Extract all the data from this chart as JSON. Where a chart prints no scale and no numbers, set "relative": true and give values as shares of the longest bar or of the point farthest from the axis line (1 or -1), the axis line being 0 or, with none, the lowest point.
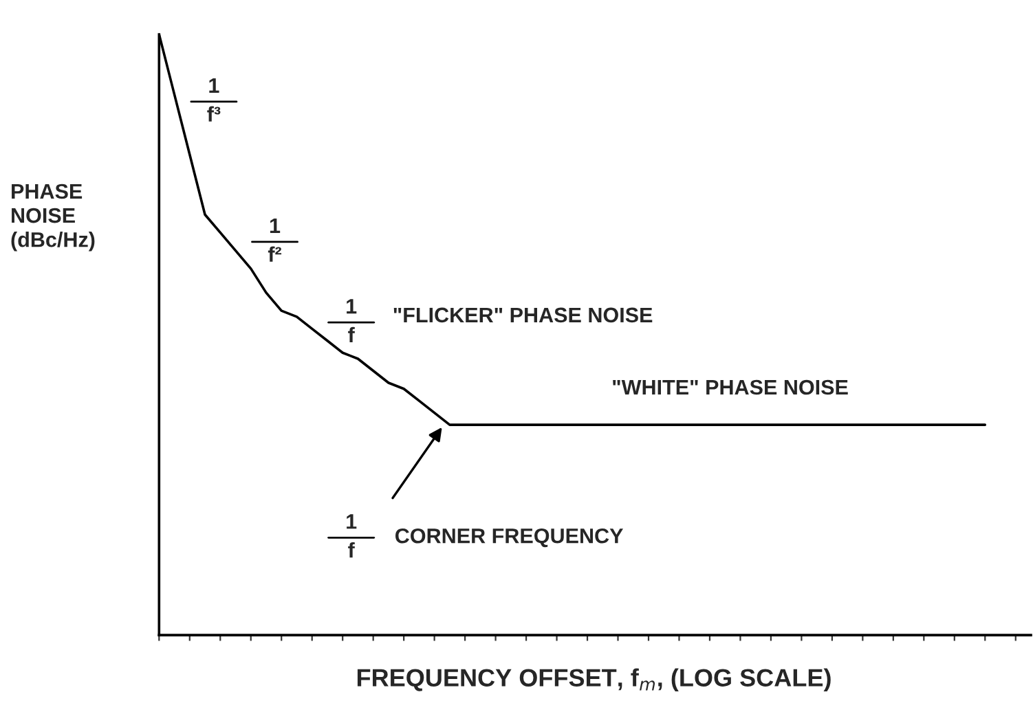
{
  "chart_data": {
    "type": "line",
    "relative": true,
    "xlabel": "FREQUENCY OFFSET, f$_{m}$, (LOG SCALE)",
    "ylabel": "PHASE\nNOISE\n(dBc/Hz)",
    "categories": [
      null,
      null,
      null,
      null,
      null,
      null,
      null,
      null,
      null,
      null,
      null,
      null,
      null,
      null,
      null,
      null,
      null,
      null,
      null,
      null,
      null,
      null,
      null,
      null,
      null,
      null,
      null,
      null,
      null,
      null,
      null,
      null,
      null,
      null,
      null,
      null,
      null,
      null,
      null,
      null,
      null,
      null,
      null,
      null,
      null,
      null,
      null,
      null,
      null,
      null,
      null,
      null,
      null,
      null,
      null,
      null,
      null,
      null
    ],
    "series": [
      {
        "color": "#000000",
        "values": [
          1,
          0.9,
          0.8,
          0.7,
          0.67,
          0.64,
          0.61,
          0.57,
          0.54,
          0.53,
          0.51,
          0.49,
          0.47,
          0.46,
          0.44,
          0.42,
          0.41,
          0.39,
          0.37,
          0.35,
          0.35,
          0.35,
          0.35,
          0.35,
          0.35,
          0.35,
          0.35,
          0.35,
          0.35,
          0.35,
          0.35,
          0.35,
          0.35,
          0.35,
          0.35,
          0.35,
          0.35,
          0.35,
          0.35,
          0.35,
          0.35,
          0.35,
          0.35,
          0.35,
          0.35,
          0.35,
          0.35,
          0.35,
          0.35,
          0.35,
          0.35,
          0.35,
          0.35,
          0.35,
          0.35,
          null,
          null,
          null
        ]
      }
    ],
    "annotations": [
      "1\nf³",
      "1\nf²",
      "1\nf",
      "\"FLICKER\" PHASE NOISE",
      "\"WHITE\" PHASE NOISE",
      "1\nf",
      "CORNER FREQUENCY"
    ],
    "grid": false,
    "legend": false,
    "marker": "none",
    "line_style": "solid"
  }
}
